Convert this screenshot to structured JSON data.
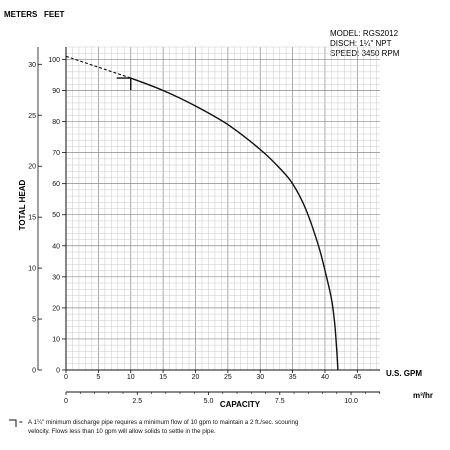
{
  "chart_data": {
    "type": "line",
    "header": {
      "meters_label": "METERS",
      "feet_label": "FEET"
    },
    "info": [
      "MODEL: RGS2012",
      "DISCH: 1¼\" NPT",
      "SPEED: 3450 RPM"
    ],
    "ylabel": "TOTAL HEAD",
    "xlabel": "CAPACITY",
    "x_unit_gpm": "U.S. GPM",
    "x_unit_m3": "m³/hr",
    "feet_ticks": [
      "0",
      "10",
      "20",
      "30",
      "40",
      "50",
      "60",
      "70",
      "80",
      "90",
      "100"
    ],
    "meter_ticks": [
      "0",
      "5",
      "10",
      "15",
      "20",
      "25",
      "30"
    ],
    "gpm_ticks": [
      "0",
      "5",
      "10",
      "15",
      "20",
      "25",
      "30",
      "35",
      "40",
      "45"
    ],
    "m3_ticks": [
      "0",
      "2.5",
      "5.0",
      "7.5",
      "10.0"
    ],
    "xlim_gpm": [
      0,
      48.5
    ],
    "ylim_feet": [
      0,
      104
    ],
    "grid": true,
    "series": [
      {
        "x": [
          10,
          15,
          20,
          25,
          30,
          33,
          35,
          37,
          39,
          40,
          41,
          41.5,
          41.8,
          42
        ],
        "y": [
          94,
          90,
          85,
          79,
          71,
          65,
          60,
          52,
          40,
          32,
          23,
          15,
          7,
          0
        ]
      }
    ],
    "dashed_extension": {
      "x": [
        0,
        10
      ],
      "y": [
        101,
        94
      ]
    },
    "min_flow_marker": {
      "x": 10,
      "y": 94
    },
    "footnote": {
      "symbol": "=",
      "line1": "A 1¼\" minimum discharge pipe requires a minimum flow of 10 gpm to maintain a 2 ft./sec. scouring",
      "line2": "velocity. Flows less than 10 gpm will allow solids to settle in the pipe."
    }
  }
}
